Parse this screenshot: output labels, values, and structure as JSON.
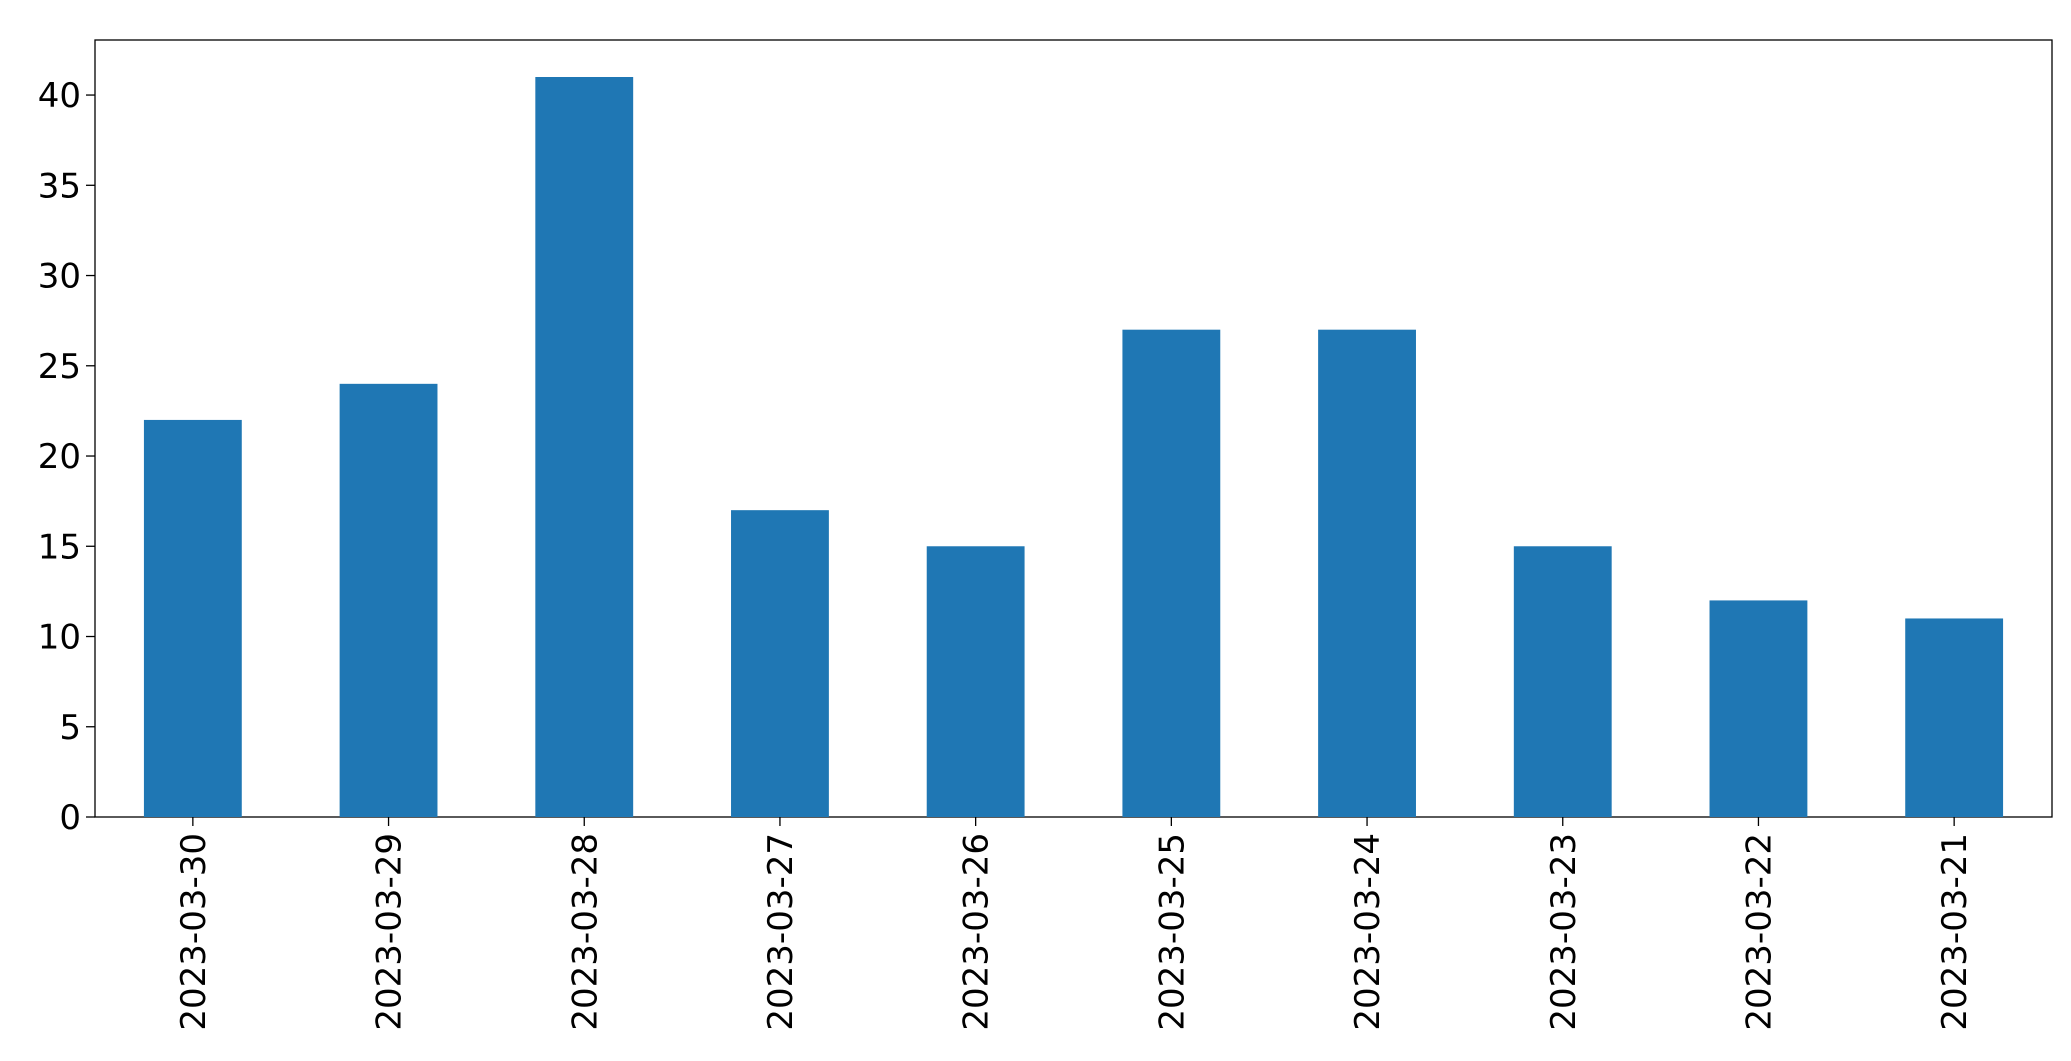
{
  "chart_data": {
    "type": "bar",
    "categories": [
      "2023-03-30",
      "2023-03-29",
      "2023-03-28",
      "2023-03-27",
      "2023-03-26",
      "2023-03-25",
      "2023-03-24",
      "2023-03-23",
      "2023-03-22",
      "2023-03-21"
    ],
    "values": [
      22,
      24,
      41,
      17,
      15,
      27,
      27,
      15,
      12,
      11
    ],
    "color": "#1f77b4",
    "ylim": [
      0,
      43.05
    ],
    "yticks": [
      0,
      5,
      10,
      15,
      20,
      25,
      30,
      35,
      40
    ],
    "grid": false
  }
}
